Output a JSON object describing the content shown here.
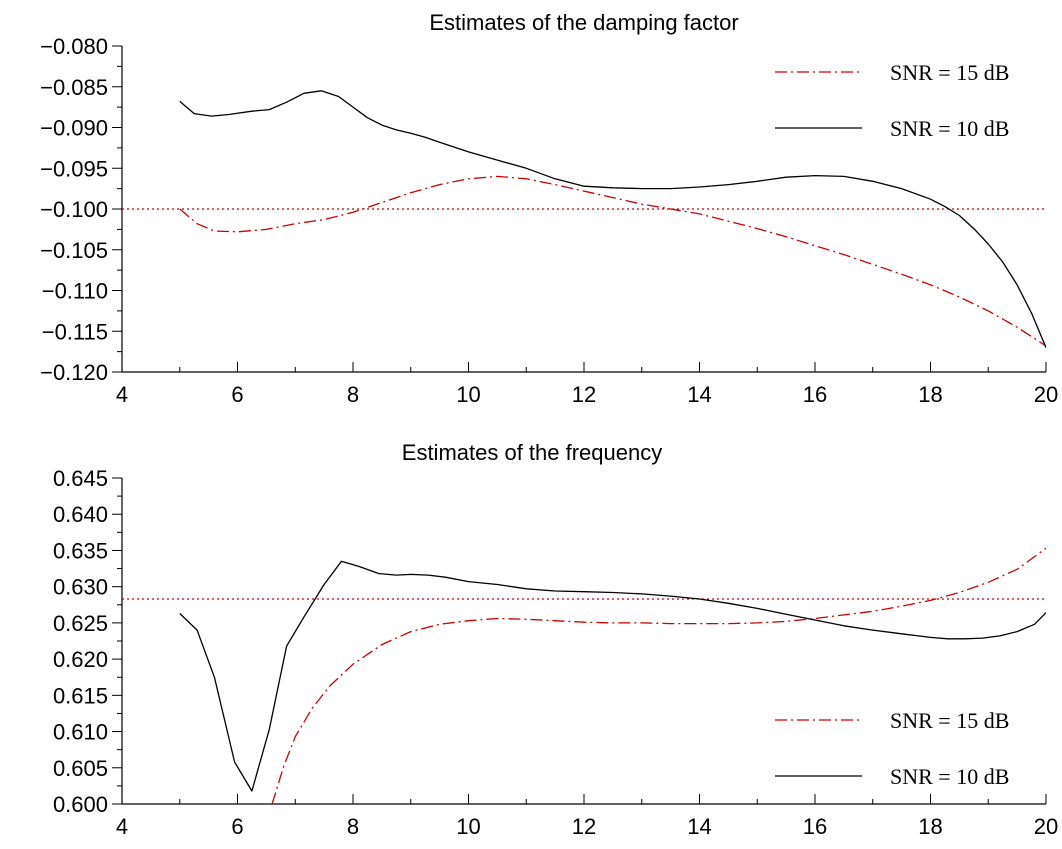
{
  "chart_data": [
    {
      "type": "line",
      "title": "Estimates of the damping factor",
      "xlabel": "",
      "ylabel": "",
      "xlim": [
        4,
        20
      ],
      "ylim": [
        -0.12,
        -0.08
      ],
      "x_ticks": [
        4,
        6,
        8,
        10,
        12,
        14,
        16,
        18,
        20
      ],
      "y_ticks": [
        -0.12,
        -0.115,
        -0.11,
        -0.105,
        -0.1,
        -0.095,
        -0.09,
        -0.085,
        -0.08
      ],
      "x_tick_labels": [
        "4",
        "6",
        "8",
        "10",
        "12",
        "14",
        "16",
        "18",
        "20"
      ],
      "y_tick_labels": [
        "−0.120",
        "−0.115",
        "−0.110",
        "−0.105",
        "−0.100",
        "−0.095",
        "−0.090",
        "−0.085",
        "−0.080"
      ],
      "grid": false,
      "legend_position": "top-right",
      "reference_line": {
        "y": -0.1,
        "style": "dotted",
        "color": "#cc0000"
      },
      "series": [
        {
          "name": "SNR = 15 dB",
          "style": "dashdot",
          "color": "#cc0000",
          "x": [
            5,
            5.3,
            5.6,
            6,
            6.5,
            7,
            7.5,
            8,
            8.5,
            9,
            9.5,
            10,
            10.5,
            11,
            11.5,
            12,
            12.5,
            13,
            13.5,
            14,
            14.5,
            15,
            15.5,
            16,
            16.5,
            17,
            17.5,
            18,
            18.5,
            19,
            19.5,
            20
          ],
          "y": [
            -0.1,
            -0.1018,
            -0.1027,
            -0.1028,
            -0.1025,
            -0.1018,
            -0.1013,
            -0.1004,
            -0.0992,
            -0.098,
            -0.097,
            -0.0963,
            -0.096,
            -0.0963,
            -0.097,
            -0.0978,
            -0.0986,
            -0.0994,
            -0.1,
            -0.1006,
            -0.1015,
            -0.1024,
            -0.1034,
            -0.1045,
            -0.1056,
            -0.1068,
            -0.108,
            -0.1093,
            -0.1108,
            -0.1125,
            -0.1145,
            -0.1168
          ]
        },
        {
          "name": "SNR = 10 dB",
          "style": "solid",
          "color": "#000000",
          "x": [
            5,
            5.25,
            5.55,
            5.85,
            6.25,
            6.55,
            6.85,
            7.15,
            7.45,
            7.75,
            8,
            8.25,
            8.5,
            8.75,
            9,
            9.25,
            9.5,
            10,
            10.5,
            11,
            11.5,
            12,
            12.5,
            13,
            13.5,
            14,
            14.5,
            15,
            15.5,
            16,
            16.5,
            17,
            17.5,
            18,
            18.25,
            18.5,
            18.75,
            19,
            19.25,
            19.5,
            19.75,
            20
          ],
          "y": [
            -0.0868,
            -0.0883,
            -0.0886,
            -0.0884,
            -0.088,
            -0.0878,
            -0.0869,
            -0.0858,
            -0.0855,
            -0.0862,
            -0.0875,
            -0.0888,
            -0.0897,
            -0.0903,
            -0.0907,
            -0.0912,
            -0.0918,
            -0.093,
            -0.094,
            -0.095,
            -0.0963,
            -0.0972,
            -0.0974,
            -0.0975,
            -0.0975,
            -0.0973,
            -0.097,
            -0.0966,
            -0.0961,
            -0.0959,
            -0.096,
            -0.0966,
            -0.0975,
            -0.0988,
            -0.0997,
            -0.1008,
            -0.1024,
            -0.1043,
            -0.1065,
            -0.1093,
            -0.1128,
            -0.117
          ]
        }
      ]
    },
    {
      "type": "line",
      "title": "Estimates of the frequency",
      "xlabel": "",
      "ylabel": "",
      "xlim": [
        4,
        20
      ],
      "ylim": [
        0.6,
        0.645
      ],
      "x_ticks": [
        4,
        6,
        8,
        10,
        12,
        14,
        16,
        18,
        20
      ],
      "y_ticks": [
        0.6,
        0.605,
        0.61,
        0.615,
        0.62,
        0.625,
        0.63,
        0.635,
        0.64,
        0.645
      ],
      "x_tick_labels": [
        "4",
        "6",
        "8",
        "10",
        "12",
        "14",
        "16",
        "18",
        "20"
      ],
      "y_tick_labels": [
        "0.600",
        "0.605",
        "0.610",
        "0.615",
        "0.620",
        "0.625",
        "0.630",
        "0.635",
        "0.640",
        "0.645"
      ],
      "grid": false,
      "legend_position": "bottom-right",
      "reference_line": {
        "y": 0.6283,
        "style": "dotted",
        "color": "#cc0000"
      },
      "series": [
        {
          "name": "SNR = 15 dB",
          "style": "dashdot",
          "color": "#cc0000",
          "x": [
            6.6,
            6.8,
            7,
            7.3,
            7.6,
            8,
            8.5,
            9,
            9.5,
            10,
            10.5,
            11,
            11.5,
            12,
            12.5,
            13,
            13.5,
            14,
            14.5,
            15,
            15.5,
            16,
            16.5,
            17,
            17.5,
            18,
            18.5,
            19,
            19.5,
            20
          ],
          "y": [
            0.6,
            0.6052,
            0.6093,
            0.6133,
            0.6163,
            0.6193,
            0.622,
            0.6238,
            0.6248,
            0.6253,
            0.6256,
            0.6255,
            0.6253,
            0.6251,
            0.625,
            0.625,
            0.6249,
            0.6249,
            0.6249,
            0.625,
            0.6252,
            0.6256,
            0.6261,
            0.6266,
            0.6273,
            0.6281,
            0.6292,
            0.6306,
            0.6324,
            0.6353
          ]
        },
        {
          "name": "SNR = 10 dB",
          "style": "solid",
          "color": "#000000",
          "x": [
            5,
            5.3,
            5.6,
            5.95,
            6.25,
            6.55,
            6.85,
            7.15,
            7.5,
            7.8,
            8.1,
            8.45,
            8.75,
            9,
            9.3,
            9.6,
            10,
            10.5,
            11,
            11.5,
            12,
            12.5,
            13,
            13.5,
            14,
            14.5,
            15,
            15.5,
            16,
            16.5,
            17,
            17.5,
            18,
            18.3,
            18.6,
            18.9,
            19.2,
            19.5,
            19.8,
            20
          ],
          "y": [
            0.6263,
            0.624,
            0.6175,
            0.6058,
            0.6018,
            0.6103,
            0.6218,
            0.6258,
            0.6303,
            0.6335,
            0.6328,
            0.6318,
            0.6316,
            0.6317,
            0.6316,
            0.6313,
            0.6307,
            0.6303,
            0.6297,
            0.6294,
            0.6293,
            0.6292,
            0.629,
            0.6287,
            0.6283,
            0.6277,
            0.627,
            0.6262,
            0.6254,
            0.6246,
            0.624,
            0.6235,
            0.623,
            0.6228,
            0.6228,
            0.6229,
            0.6232,
            0.6238,
            0.6248,
            0.6264
          ]
        }
      ]
    }
  ]
}
